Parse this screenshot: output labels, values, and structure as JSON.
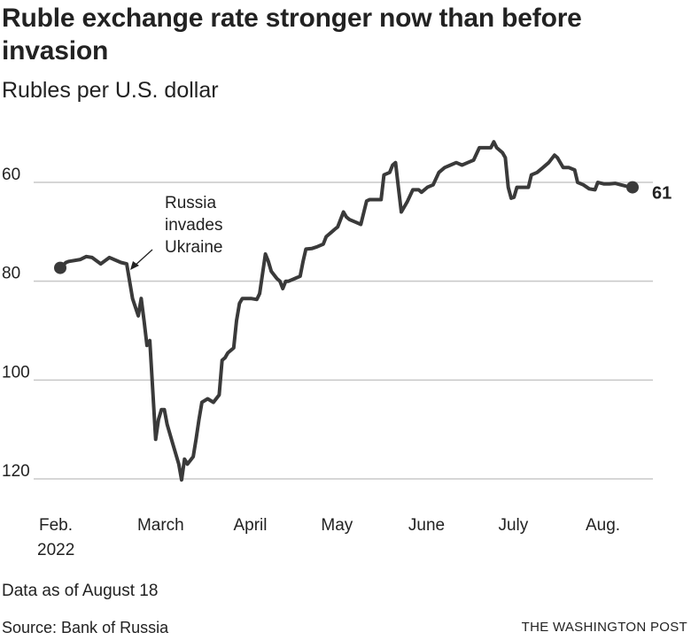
{
  "header": {
    "title": "Ruble exchange rate stronger now than before invasion",
    "subtitle": "Rubles per U.S. dollar"
  },
  "footer": {
    "note": "Data as of August 18",
    "source": "Source: Bank of Russia",
    "credit": "THE WASHINGTON POST"
  },
  "colors": {
    "line": "#3a3a3a",
    "grid": "#c8c8c8",
    "text": "#222222"
  },
  "chart_data": {
    "type": "line",
    "title": "Ruble exchange rate stronger now than before invasion",
    "subtitle": "Rubles per U.S. dollar",
    "y_inverted": true,
    "ylim": [
      46,
      121
    ],
    "yticks": [
      60,
      80,
      100,
      120
    ],
    "grid": "horizontal",
    "xlim": [
      "2022-02-01",
      "2022-08-31"
    ],
    "xticks": [
      {
        "label": "Feb.",
        "label2": "2022",
        "date": "2022-02-01"
      },
      {
        "label": "March",
        "date": "2022-03-01"
      },
      {
        "label": "April",
        "date": "2022-04-01"
      },
      {
        "label": "May",
        "date": "2022-05-01"
      },
      {
        "label": "June",
        "date": "2022-06-01"
      },
      {
        "label": "July",
        "date": "2022-07-01"
      },
      {
        "label": "Aug.",
        "date": "2022-08-01"
      }
    ],
    "annotation": {
      "lines": [
        "Russia",
        "invades",
        "Ukraine"
      ],
      "date": "2022-02-24",
      "value": 75.5
    },
    "end_label": "61",
    "series": [
      {
        "points": [
          [
            "2022-02-01",
            77.3
          ],
          [
            "2022-02-03",
            76.2
          ],
          [
            "2022-02-04",
            76.0
          ],
          [
            "2022-02-08",
            75.6
          ],
          [
            "2022-02-10",
            75.0
          ],
          [
            "2022-02-12",
            75.2
          ],
          [
            "2022-02-15",
            76.5
          ],
          [
            "2022-02-18",
            75.2
          ],
          [
            "2022-02-22",
            76.2
          ],
          [
            "2022-02-24",
            76.5
          ],
          [
            "2022-02-25",
            80.0
          ],
          [
            "2022-02-26",
            83.5
          ],
          [
            "2022-02-28",
            87.0
          ],
          [
            "2022-03-01",
            83.5
          ],
          [
            "2022-03-02",
            88.0
          ],
          [
            "2022-03-03",
            93.0
          ],
          [
            "2022-03-04",
            92.0
          ],
          [
            "2022-03-05",
            102.0
          ],
          [
            "2022-03-06",
            112.0
          ],
          [
            "2022-03-07",
            108.0
          ],
          [
            "2022-03-08",
            106.0
          ],
          [
            "2022-03-09",
            106.0
          ],
          [
            "2022-03-10",
            109.0
          ],
          [
            "2022-03-12",
            113.0
          ],
          [
            "2022-03-14",
            117.0
          ],
          [
            "2022-03-15",
            120.2
          ],
          [
            "2022-03-16",
            116.0
          ],
          [
            "2022-03-17",
            117.0
          ],
          [
            "2022-03-19",
            115.5
          ],
          [
            "2022-03-20",
            112.0
          ],
          [
            "2022-03-21",
            108.0
          ],
          [
            "2022-03-22",
            104.5
          ],
          [
            "2022-03-24",
            103.8
          ],
          [
            "2022-03-26",
            104.5
          ],
          [
            "2022-03-28",
            103.0
          ],
          [
            "2022-03-29",
            96.0
          ],
          [
            "2022-03-30",
            95.5
          ],
          [
            "2022-03-31",
            94.5
          ],
          [
            "2022-04-02",
            93.5
          ],
          [
            "2022-04-03",
            88.0
          ],
          [
            "2022-04-04",
            84.5
          ],
          [
            "2022-04-05",
            83.5
          ],
          [
            "2022-04-06",
            83.5
          ],
          [
            "2022-04-08",
            83.5
          ],
          [
            "2022-04-10",
            83.7
          ],
          [
            "2022-04-11",
            82.5
          ],
          [
            "2022-04-13",
            74.5
          ],
          [
            "2022-04-14",
            76.0
          ],
          [
            "2022-04-15",
            78.0
          ],
          [
            "2022-04-17",
            79.5
          ],
          [
            "2022-04-18",
            80.0
          ],
          [
            "2022-04-19",
            81.5
          ],
          [
            "2022-04-20",
            80.0
          ],
          [
            "2022-04-21",
            80.0
          ],
          [
            "2022-04-23",
            79.5
          ],
          [
            "2022-04-25",
            79.0
          ],
          [
            "2022-04-26",
            76.0
          ],
          [
            "2022-04-27",
            73.5
          ],
          [
            "2022-04-29",
            73.4
          ],
          [
            "2022-05-01",
            73.0
          ],
          [
            "2022-05-03",
            72.5
          ],
          [
            "2022-05-04",
            71.0
          ],
          [
            "2022-05-05",
            70.5
          ],
          [
            "2022-05-06",
            70.0
          ],
          [
            "2022-05-07",
            69.5
          ],
          [
            "2022-05-08",
            69.0
          ],
          [
            "2022-05-10",
            66.0
          ],
          [
            "2022-05-11",
            67.0
          ],
          [
            "2022-05-12",
            67.5
          ],
          [
            "2022-05-14",
            68.0
          ],
          [
            "2022-05-16",
            68.5
          ],
          [
            "2022-05-18",
            63.8
          ],
          [
            "2022-05-19",
            63.5
          ],
          [
            "2022-05-21",
            63.5
          ],
          [
            "2022-05-23",
            63.5
          ],
          [
            "2022-05-24",
            58.5
          ],
          [
            "2022-05-26",
            58.0
          ],
          [
            "2022-05-27",
            56.5
          ],
          [
            "2022-05-28",
            56.0
          ],
          [
            "2022-05-29",
            61.0
          ],
          [
            "2022-05-30",
            66.0
          ],
          [
            "2022-06-01",
            64.0
          ],
          [
            "2022-06-03",
            61.5
          ],
          [
            "2022-06-05",
            61.5
          ],
          [
            "2022-06-06",
            62.0
          ],
          [
            "2022-06-08",
            61.0
          ],
          [
            "2022-06-10",
            60.5
          ],
          [
            "2022-06-12",
            58.0
          ],
          [
            "2022-06-14",
            57.0
          ],
          [
            "2022-06-16",
            56.5
          ],
          [
            "2022-06-18",
            56.0
          ],
          [
            "2022-06-20",
            56.5
          ],
          [
            "2022-06-22",
            56.0
          ],
          [
            "2022-06-24",
            55.5
          ],
          [
            "2022-06-26",
            53.0
          ],
          [
            "2022-06-28",
            53.0
          ],
          [
            "2022-06-30",
            53.0
          ],
          [
            "2022-07-01",
            51.8
          ],
          [
            "2022-07-02",
            53.0
          ],
          [
            "2022-07-04",
            54.0
          ],
          [
            "2022-07-05",
            55.0
          ],
          [
            "2022-07-06",
            61.0
          ],
          [
            "2022-07-07",
            63.2
          ],
          [
            "2022-07-08",
            63.0
          ],
          [
            "2022-07-09",
            61.0
          ],
          [
            "2022-07-11",
            61.0
          ],
          [
            "2022-07-13",
            61.0
          ],
          [
            "2022-07-14",
            58.5
          ],
          [
            "2022-07-16",
            58.0
          ],
          [
            "2022-07-18",
            57.0
          ],
          [
            "2022-07-20",
            56.0
          ],
          [
            "2022-07-22",
            54.5
          ],
          [
            "2022-07-23",
            55.0
          ],
          [
            "2022-07-25",
            57.0
          ],
          [
            "2022-07-27",
            57.0
          ],
          [
            "2022-07-29",
            57.5
          ],
          [
            "2022-07-30",
            60.0
          ],
          [
            "2022-08-01",
            60.5
          ],
          [
            "2022-08-03",
            61.3
          ],
          [
            "2022-08-05",
            61.5
          ],
          [
            "2022-08-06",
            60.0
          ],
          [
            "2022-08-08",
            60.3
          ],
          [
            "2022-08-10",
            60.3
          ],
          [
            "2022-08-12",
            60.2
          ],
          [
            "2022-08-14",
            60.5
          ],
          [
            "2022-08-16",
            60.8
          ],
          [
            "2022-08-18",
            61.0
          ]
        ]
      }
    ]
  }
}
